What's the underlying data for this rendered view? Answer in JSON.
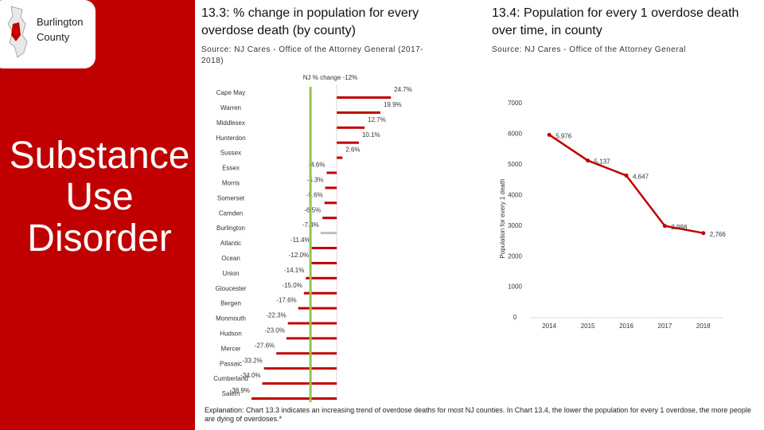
{
  "sidebar": {
    "badge": "Burlington County",
    "heading": "Substance Use Disorder"
  },
  "explanation": "Explanation: Chart 13.3 indicates an increasing trend of overdose deaths for most NJ counties. In Chart 13.4, the lower the population for every 1 overdose, the more people are dying of overdoses.*",
  "chart_data": [
    {
      "type": "bar",
      "orientation": "horizontal",
      "title": "13.3: % change in population for every overdose death (by county)",
      "subtitle": "Source: NJ Cares - Office of the Attorney General (2017-2018)",
      "categories": [
        "Cape May",
        "Warren",
        "Middlesex",
        "Hunterdon",
        "Sussex",
        "Essex",
        "Morris",
        "Somerset",
        "Camden",
        "Burlington",
        "Atlantic",
        "Ocean",
        "Union",
        "Gloucester",
        "Bergen",
        "Monmouth",
        "Hudson",
        "Mercer",
        "Passaic",
        "Cumberland",
        "Salem"
      ],
      "values": [
        24.7,
        19.9,
        12.7,
        10.1,
        2.6,
        -4.6,
        -5.3,
        -5.6,
        -6.5,
        -7.4,
        -11.4,
        -12.0,
        -14.1,
        -15.0,
        -17.6,
        -22.3,
        -23.0,
        -27.6,
        -33.2,
        -34.0,
        -38.9
      ],
      "value_labels": [
        "24.7%",
        "19.9%",
        "12.7%",
        "10.1%",
        "2.6%",
        "-4.6%",
        "-5.3%",
        "-5.6%",
        "-6.5%",
        "-7.4%",
        "-11.4%",
        "-12.0%",
        "-14.1%",
        "-15.0%",
        "-17.6%",
        "-22.3%",
        "-23.0%",
        "-27.6%",
        "-33.2%",
        "-34.0%",
        "-38.9%"
      ],
      "bar_colors": [
        "#c00000",
        "#c00000",
        "#c00000",
        "#c00000",
        "#c00000",
        "#c00000",
        "#c00000",
        "#c00000",
        "#c00000",
        "#bfbfbf",
        "#c00000",
        "#c00000",
        "#c00000",
        "#c00000",
        "#c00000",
        "#c00000",
        "#c00000",
        "#c00000",
        "#c00000",
        "#c00000",
        "#c00000"
      ],
      "xlim": [
        -40,
        25
      ],
      "reference_line": {
        "value": -12,
        "label": "NJ % change -12%",
        "color": "#92c353"
      }
    },
    {
      "type": "line",
      "title": "13.4: Population for every 1 overdose death over time, in county",
      "subtitle": "Source: NJ Cares - Office of the Attorney General",
      "y_label": "Population for every 1 death",
      "categories": [
        "2014",
        "2015",
        "2016",
        "2017",
        "2018"
      ],
      "values": [
        5976,
        5137,
        4647,
        2998,
        2766
      ],
      "value_labels": [
        "5,976",
        "5,137",
        "4,647",
        "2,998",
        "2,766"
      ],
      "color": "#c00000",
      "ylim": [
        0,
        7000
      ],
      "yticks": [
        0,
        1000,
        2000,
        3000,
        4000,
        5000,
        6000,
        7000
      ]
    }
  ]
}
